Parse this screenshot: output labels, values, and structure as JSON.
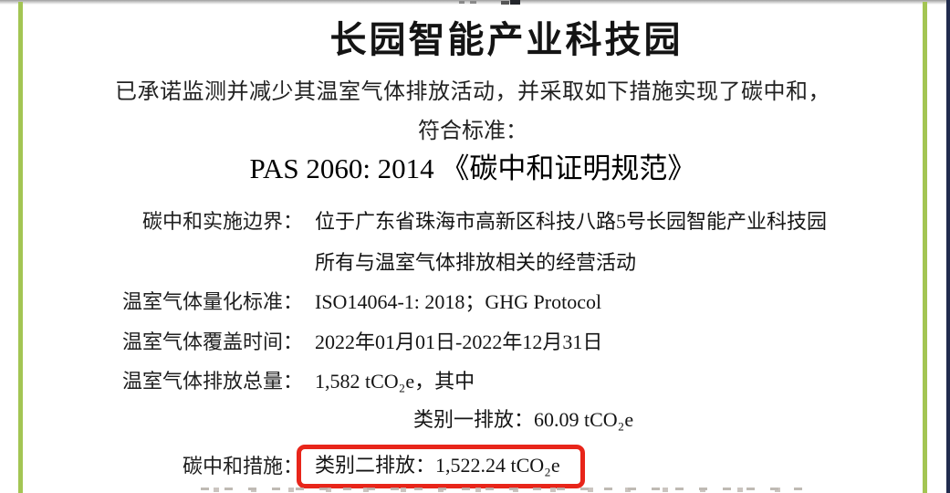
{
  "doc": {
    "title": "长园智能产业科技园",
    "intro": "已承诺监测并减少其温室气体排放活动，并采取如下措施实现了碳中和，",
    "standard_leadin": "符合标准：",
    "standard_name": "PAS 2060: 2014 《碳中和证明规范》"
  },
  "fields": [
    {
      "label": "碳中和实施边界：",
      "value": "位于广东省珠海市高新区科技八路5号长园智能产业科技园"
    },
    {
      "label": "",
      "value": "所有与温室气体排放相关的经营活动"
    },
    {
      "label": "温室气体量化标准：",
      "value": "ISO14064-1: 2018；GHG Protocol"
    },
    {
      "label": "温室气体覆盖时间：",
      "value": "2022年01月01日-2022年12月31日"
    },
    {
      "label": "温室气体排放总量：",
      "value": "1,582 tCO₂e，其中"
    },
    {
      "label": "",
      "value": "类别一排放：60.09 tCO₂e"
    },
    {
      "label": "碳中和措施：",
      "value": "类别二排放：1,522.24 tCO₂e"
    }
  ],
  "annotation": {
    "highlight_shape": "red-rounded-rectangle",
    "highlight_color": "#e8251a",
    "highlighted_value": "类别二排放：1,522.24 tCO₂e"
  },
  "colors": {
    "page_border_green": "#a3c553",
    "page_border_navy": "#212c4e",
    "title_text": "#141414",
    "body_text": "#1b1b1b"
  }
}
